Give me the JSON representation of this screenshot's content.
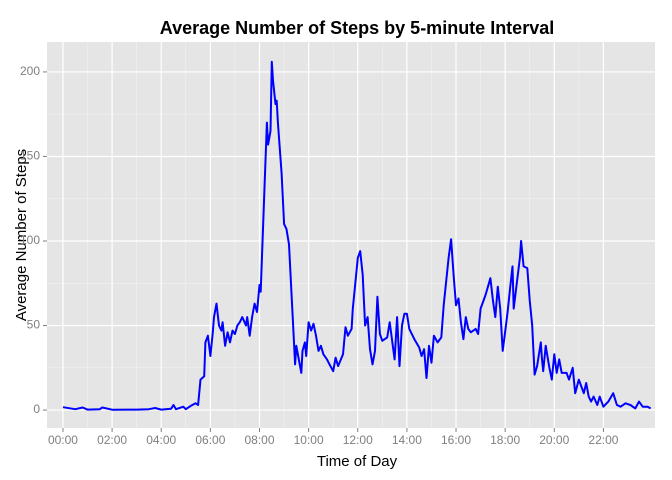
{
  "chart_data": {
    "type": "line",
    "title": "Average Number of Steps by 5-minute Interval",
    "x_label": "Time of Day",
    "y_label": "Average Number of Steps",
    "x": [
      0,
      0.5,
      0.8,
      1,
      1.5,
      1.6,
      2,
      3,
      3.5,
      3.75,
      4,
      4.4,
      4.5,
      4.6,
      4.9,
      5,
      5.2,
      5.4,
      5.5,
      5.6,
      5.75,
      5.8,
      5.9,
      6,
      6.1,
      6.15,
      6.25,
      6.35,
      6.45,
      6.5,
      6.6,
      6.7,
      6.8,
      6.9,
      7,
      7.1,
      7.2,
      7.3,
      7.45,
      7.5,
      7.6,
      7.7,
      7.8,
      7.9,
      8,
      8.05,
      8.2,
      8.3,
      8.35,
      8.45,
      8.5,
      8.55,
      8.65,
      8.7,
      8.75,
      8.9,
      9,
      9.1,
      9.2,
      9.35,
      9.45,
      9.5,
      9.6,
      9.7,
      9.75,
      9.85,
      9.9,
      10,
      10.1,
      10.2,
      10.3,
      10.4,
      10.5,
      10.6,
      10.75,
      10.85,
      11,
      11.1,
      11.2,
      11.4,
      11.5,
      11.6,
      11.75,
      11.8,
      11.9,
      12,
      12.1,
      12.2,
      12.3,
      12.4,
      12.5,
      12.6,
      12.7,
      12.8,
      12.9,
      13,
      13.2,
      13.3,
      13.5,
      13.6,
      13.7,
      13.8,
      13.9,
      14,
      14.1,
      14.3,
      14.5,
      14.6,
      14.7,
      14.8,
      14.9,
      15,
      15.1,
      15.25,
      15.4,
      15.5,
      15.7,
      15.8,
      15.9,
      16,
      16.1,
      16.2,
      16.3,
      16.4,
      16.5,
      16.6,
      16.8,
      16.9,
      17,
      17.2,
      17.4,
      17.5,
      17.6,
      17.7,
      17.8,
      17.9,
      18,
      18.1,
      18.2,
      18.3,
      18.35,
      18.5,
      18.6,
      18.65,
      18.75,
      18.9,
      19,
      19.1,
      19.2,
      19.3,
      19.45,
      19.5,
      19.55,
      19.65,
      19.8,
      19.9,
      20,
      20.1,
      20.2,
      20.3,
      20.5,
      20.6,
      20.75,
      20.85,
      21,
      21.2,
      21.3,
      21.4,
      21.5,
      21.6,
      21.75,
      21.85,
      22,
      22.2,
      22.4,
      22.55,
      22.7,
      22.9,
      23.1,
      23.3,
      23.45,
      23.6,
      23.8,
      23.92
    ],
    "series": [
      {
        "name": "Average Number of Steps",
        "color": "#0000ff",
        "values": [
          1.7,
          0.5,
          1.5,
          0.3,
          0.5,
          1.5,
          0.2,
          0.3,
          0.5,
          1.2,
          0.3,
          0.8,
          3,
          0.5,
          2,
          0.5,
          2.5,
          4,
          3,
          18,
          20,
          40,
          44,
          32,
          46,
          55,
          63,
          50,
          47,
          52,
          38,
          46,
          40,
          47,
          45,
          50,
          52,
          55,
          50,
          55,
          44,
          55,
          63,
          58,
          74,
          70,
          130,
          170,
          157,
          165,
          206,
          195,
          181,
          183,
          170,
          140,
          110,
          107,
          98,
          55,
          27,
          38,
          30,
          22,
          35,
          40,
          32,
          52,
          47,
          51,
          44,
          35,
          38,
          33,
          30,
          27,
          23,
          31,
          26,
          33,
          49,
          44,
          48,
          60,
          75,
          90,
          94,
          80,
          50,
          55,
          36,
          27,
          35,
          67,
          45,
          41,
          43,
          52,
          30,
          55,
          26,
          50,
          57,
          57,
          48,
          42,
          37,
          32,
          36,
          19,
          38,
          28,
          44,
          40,
          43,
          62,
          90,
          101,
          80,
          62,
          66,
          52,
          42,
          55,
          48,
          46,
          48,
          45,
          60,
          68,
          78,
          65,
          55,
          73,
          60,
          35,
          46,
          58,
          72,
          85,
          60,
          78,
          90,
          100,
          85,
          84,
          65,
          50,
          21,
          26,
          40,
          30,
          23,
          38,
          25,
          18,
          33,
          22,
          30,
          22,
          22,
          18,
          25,
          10,
          18,
          10,
          16,
          8,
          5,
          8,
          3,
          8,
          2,
          5,
          10,
          3,
          2,
          4,
          3,
          1,
          5,
          2,
          2,
          1
        ]
      }
    ],
    "xlim": [
      -0.65,
      24.1
    ],
    "ylim": [
      -10.6,
      217.7
    ],
    "xticks": [
      {
        "value": 0,
        "label": "00:00"
      },
      {
        "value": 2,
        "label": "02:00"
      },
      {
        "value": 4,
        "label": "04:00"
      },
      {
        "value": 6,
        "label": "06:00"
      },
      {
        "value": 8,
        "label": "08:00"
      },
      {
        "value": 10,
        "label": "10:00"
      },
      {
        "value": 12,
        "label": "12:00"
      },
      {
        "value": 14,
        "label": "14:00"
      },
      {
        "value": 16,
        "label": "16:00"
      },
      {
        "value": 18,
        "label": "18:00"
      },
      {
        "value": 20,
        "label": "20:00"
      },
      {
        "value": 22,
        "label": "22:00"
      }
    ],
    "yticks": [
      0,
      50,
      100,
      150,
      200
    ],
    "grid": true
  }
}
